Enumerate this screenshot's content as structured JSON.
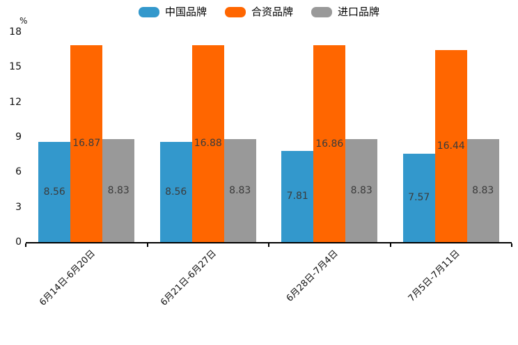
{
  "chart_data": {
    "type": "bar",
    "title": "",
    "unit_label": "%",
    "categories": [
      "6月14日-6月20日",
      "6月21日-6月27日",
      "6月28日-7月4日",
      "7月5日-7月11日"
    ],
    "series": [
      {
        "name": "中国品牌",
        "color": "#3398cc",
        "values": [
          8.56,
          8.56,
          7.81,
          7.57
        ]
      },
      {
        "name": "合资品牌",
        "color": "#ff6600",
        "values": [
          16.87,
          16.88,
          16.86,
          16.44
        ]
      },
      {
        "name": "进口品牌",
        "color": "#999999",
        "values": [
          8.83,
          8.83,
          8.83,
          8.83
        ]
      }
    ],
    "y_axis": {
      "label": "%",
      "min": 0,
      "max": 18,
      "tick_interval": 3,
      "ticks": [
        0,
        3,
        6,
        9,
        12,
        15,
        18
      ]
    },
    "x_axis": {
      "tick_style": "between-groups",
      "label_rotation_deg": 45
    },
    "legend_position": "top-center",
    "grid": false,
    "value_labels_position": "inside-center",
    "value_label_color": "#3b3b3b",
    "axis_color": "#000000",
    "background_color": "#ffffff"
  }
}
